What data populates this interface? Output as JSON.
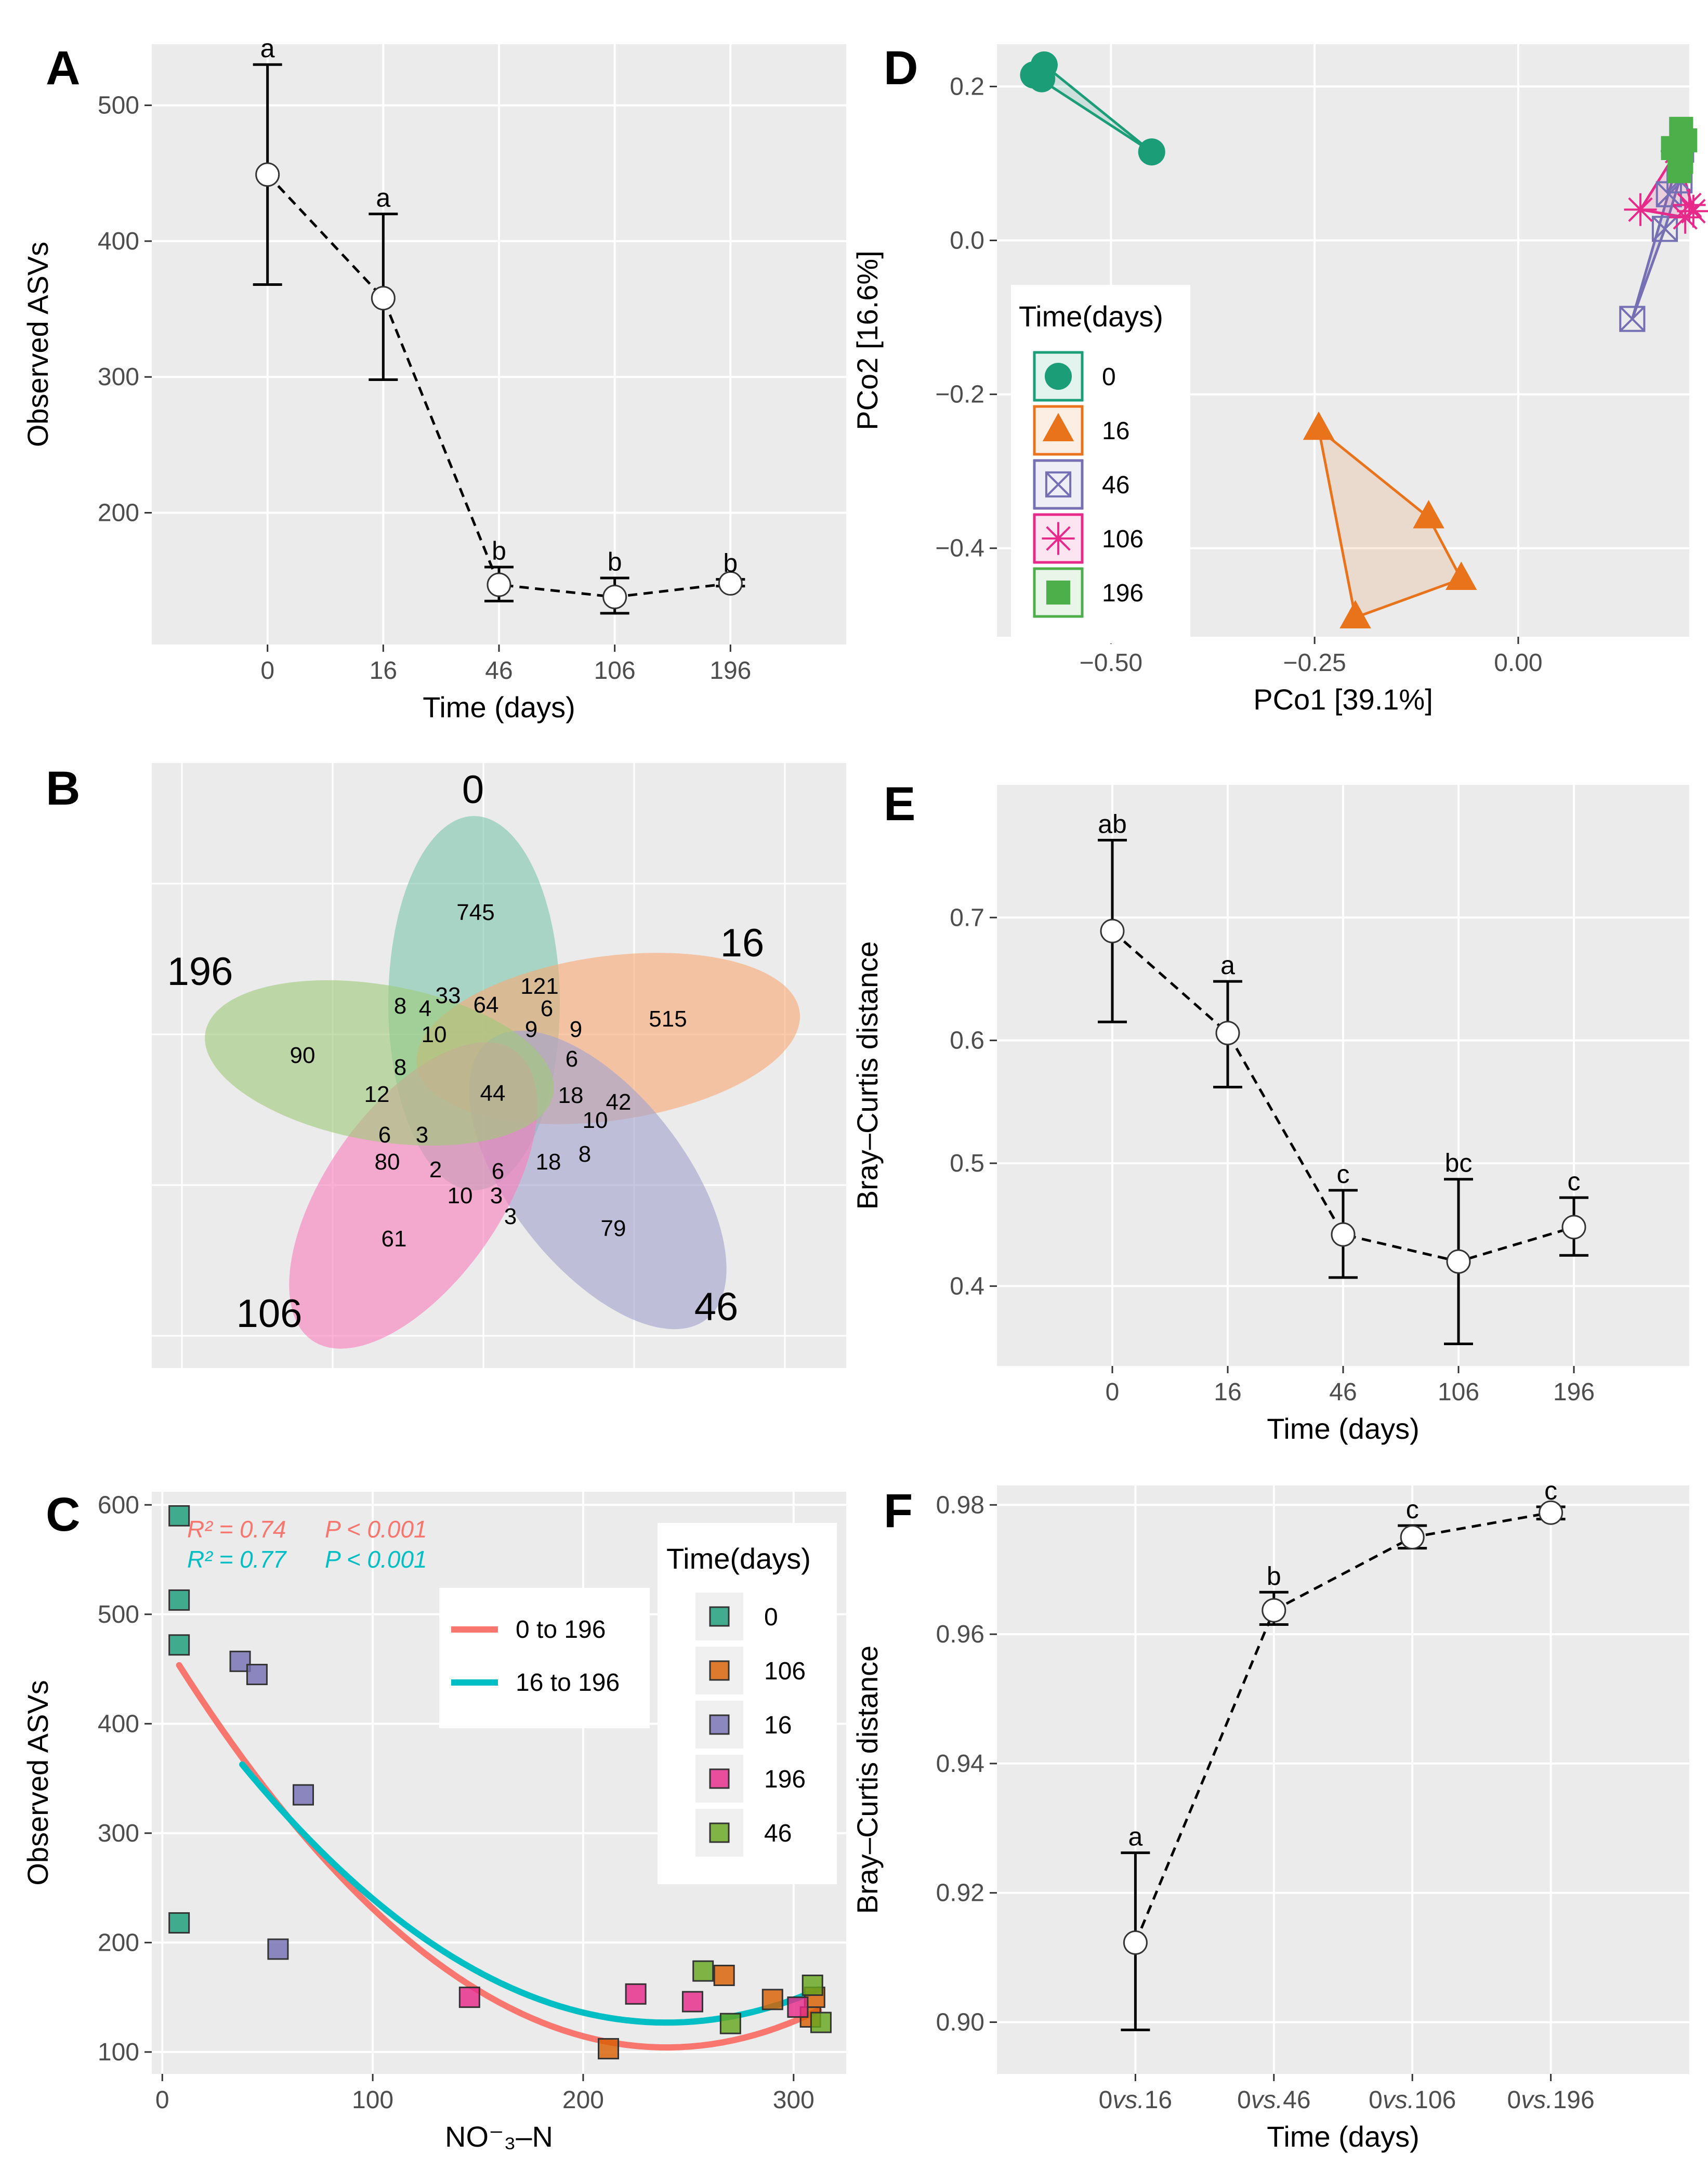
{
  "chart_data": [
    {
      "panel": "A",
      "type": "line",
      "xlabel": "Time (days)",
      "ylabel": "Observed ASVs",
      "categories": [
        "0",
        "16",
        "46",
        "106",
        "196"
      ],
      "values": [
        449,
        358,
        147,
        138,
        148
      ],
      "error_low": [
        368,
        298,
        135,
        126,
        146
      ],
      "error_high": [
        530,
        420,
        160,
        152,
        151
      ],
      "significance": [
        "a",
        "a",
        "b",
        "b",
        "b"
      ],
      "y_ticks": [
        200,
        300,
        400,
        500
      ],
      "ylim": [
        103,
        545
      ]
    },
    {
      "panel": "B",
      "type": "venn",
      "sets": [
        {
          "name": "0",
          "unique": "745",
          "color": "#7ec6ad"
        },
        {
          "name": "16",
          "unique": "515",
          "color": "#f7a978"
        },
        {
          "name": "46",
          "unique": "79",
          "color": "#a3a3cf"
        },
        {
          "name": "106",
          "unique": "61",
          "color": "#f97fbc"
        },
        {
          "name": "196",
          "unique": "90",
          "color": "#a0c97a"
        }
      ],
      "intersections": [
        "8",
        "4",
        "33",
        "64",
        "121",
        "6",
        "10",
        "9",
        "9",
        "6",
        "8",
        "12",
        "44",
        "18",
        "42",
        "10",
        "6",
        "3",
        "8",
        "80",
        "2",
        "6",
        "18",
        "10",
        "3",
        "3"
      ]
    },
    {
      "panel": "C",
      "type": "scatter",
      "xlabel": "NO⁻₃–N",
      "ylabel": "Observed ASVs",
      "x_ticks": [
        0,
        100,
        200,
        300
      ],
      "y_ticks": [
        100,
        200,
        300,
        400,
        500,
        600
      ],
      "xlim": [
        -5,
        325
      ],
      "ylim": [
        80,
        612
      ],
      "stats": [
        {
          "r2_label": "R² = 0.74",
          "p_label": "P < 0.001",
          "color": "#f8766d"
        },
        {
          "r2_label": "R² = 0.77",
          "p_label": "P < 0.001",
          "color": "#00bfc4"
        }
      ],
      "fit_legend": [
        {
          "label": "0 to 196",
          "color": "#f8766d"
        },
        {
          "label": "16 to 196",
          "color": "#00bfc4"
        }
      ],
      "fits": [
        {
          "name": "0 to 196",
          "a": 0.00651,
          "b": -3.12,
          "c": 478,
          "x_start": 8,
          "x_end": 312
        },
        {
          "name": "16 to 196",
          "a": 0.0058,
          "b": -2.78,
          "c": 460,
          "x_start": 38,
          "x_end": 312
        }
      ],
      "legend_title": "Time(days)",
      "groups": [
        {
          "name": "0",
          "color": "#1b9e77",
          "points": [
            [
              8,
              590
            ],
            [
              8,
              513
            ],
            [
              8,
              472
            ],
            [
              8,
              218
            ]
          ]
        },
        {
          "name": "106",
          "color": "#d95f02",
          "points": [
            [
              212,
              103
            ],
            [
              267,
              170
            ],
            [
              290,
              148
            ],
            [
              308,
              132
            ],
            [
              310,
              150
            ]
          ]
        },
        {
          "name": "16",
          "color": "#7570b3",
          "points": [
            [
              37,
              457
            ],
            [
              45,
              445
            ],
            [
              67,
              335
            ],
            [
              55,
              194
            ]
          ]
        },
        {
          "name": "196",
          "color": "#e7298a",
          "points": [
            [
              146,
              150
            ],
            [
              225,
              153
            ],
            [
              252,
              146
            ],
            [
              302,
              141
            ]
          ]
        },
        {
          "name": "46",
          "color": "#66a61e",
          "points": [
            [
              257,
              174
            ],
            [
              270,
              126
            ],
            [
              309,
              161
            ],
            [
              313,
              127
            ]
          ]
        }
      ]
    },
    {
      "panel": "D",
      "type": "scatter",
      "xlabel": "PCo1 [39.1%]",
      "ylabel": "PCo2 [16.6%]",
      "x_tick_labels": [
        "−0.50",
        "−0.25",
        "0.00"
      ],
      "x_ticks": [
        -0.5,
        -0.25,
        0.0
      ],
      "y_tick_labels": [
        "0.2",
        "0.0",
        "−0.2",
        "−0.4"
      ],
      "y_ticks": [
        0.2,
        0.0,
        -0.2,
        -0.4
      ],
      "xlim": [
        -0.64,
        0.21
      ],
      "ylim": [
        -0.515,
        0.255
      ],
      "legend_title": "Time(days)",
      "groups": [
        {
          "name": "0",
          "color": "#1b9e77",
          "shape": "circle",
          "points": [
            [
              -0.595,
              0.215
            ],
            [
              -0.582,
              0.228
            ],
            [
              -0.585,
              0.21
            ],
            [
              -0.45,
              0.115
            ]
          ]
        },
        {
          "name": "16",
          "color": "#e8731b",
          "shape": "triangle",
          "points": [
            [
              -0.245,
              -0.245
            ],
            [
              -0.11,
              -0.36
            ],
            [
              -0.07,
              -0.44
            ],
            [
              -0.2,
              -0.49
            ]
          ]
        },
        {
          "name": "46",
          "color": "#7570b3",
          "shape": "boxcross",
          "points": [
            [
              0.14,
              -0.102
            ],
            [
              0.18,
              0.015
            ],
            [
              0.185,
              0.06
            ],
            [
              0.2,
              0.118
            ],
            [
              0.198,
              0.078
            ]
          ]
        },
        {
          "name": "106",
          "color": "#e7298a",
          "shape": "asterisk",
          "points": [
            [
              0.15,
              0.04
            ],
            [
              0.195,
              0.116
            ],
            [
              0.21,
              0.046
            ],
            [
              0.215,
              0.038
            ],
            [
              0.205,
              0.03
            ]
          ]
        },
        {
          "name": "196",
          "color": "#4daf4a",
          "shape": "square",
          "points": [
            [
              0.2,
              0.145
            ],
            [
              0.205,
              0.13
            ],
            [
              0.19,
              0.12
            ],
            [
              0.198,
              0.09
            ],
            [
              0.2,
              0.102
            ]
          ]
        }
      ]
    },
    {
      "panel": "E",
      "type": "line",
      "xlabel": "Time (days)",
      "ylabel": "Bray–Curtis distance",
      "categories": [
        "0",
        "16",
        "46",
        "106",
        "196"
      ],
      "values": [
        0.689,
        0.606,
        0.442,
        0.42,
        0.448
      ],
      "error_low": [
        0.615,
        0.562,
        0.407,
        0.353,
        0.425
      ],
      "error_high": [
        0.763,
        0.648,
        0.478,
        0.487,
        0.472
      ],
      "significance": [
        "ab",
        "a",
        "c",
        "bc",
        "c"
      ],
      "y_ticks": [
        0.4,
        0.5,
        0.6,
        0.7
      ],
      "y_tick_labels": [
        "0.4",
        "0.5",
        "0.6",
        "0.7"
      ],
      "ylim": [
        0.335,
        0.808
      ]
    },
    {
      "panel": "F",
      "type": "line",
      "xlabel": "Time (days)",
      "ylabel": "Bray–Curtis distance",
      "categories": [
        "0vs.16",
        "0vs.46",
        "0vs.106",
        "0vs.196"
      ],
      "values": [
        0.9123,
        0.9637,
        0.975,
        0.9788
      ],
      "error_low": [
        0.8988,
        0.9615,
        0.9733,
        0.9778
      ],
      "error_high": [
        0.9262,
        0.9665,
        0.9768,
        0.9797
      ],
      "significance": [
        "a",
        "b",
        "c",
        "c"
      ],
      "y_ticks": [
        0.9,
        0.92,
        0.94,
        0.96,
        0.98
      ],
      "y_tick_labels": [
        "0.90",
        "0.92",
        "0.94",
        "0.96",
        "0.98"
      ],
      "ylim": [
        0.892,
        0.983
      ]
    }
  ],
  "panel_labels": [
    "A",
    "B",
    "C",
    "D",
    "E",
    "F"
  ]
}
